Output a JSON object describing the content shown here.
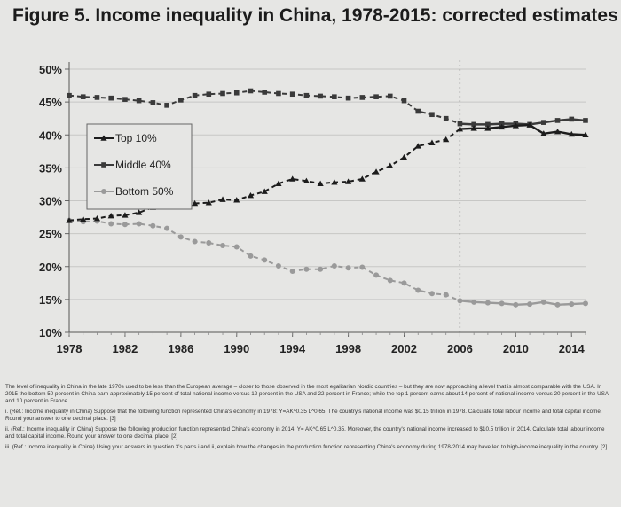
{
  "title": "Figure 5. Income inequality in China, 1978-2015: corrected estimates",
  "chart_data": {
    "type": "line",
    "x_ticks": [
      "1978",
      "1982",
      "1986",
      "1990",
      "1994",
      "1998",
      "2002",
      "2006",
      "2010",
      "2014"
    ],
    "y_ticks": [
      "50%",
      "45%",
      "40%",
      "35%",
      "30%",
      "25%",
      "20%",
      "15%",
      "10%"
    ],
    "xlim": [
      1978,
      2015
    ],
    "ylim": [
      10,
      50
    ],
    "grid": "horizontal",
    "legend_placement": "upper-left",
    "reference_line_x": 2006,
    "colors": {
      "top": "#1c1c1c",
      "middle": "#3a3a3a",
      "bottom": "#9a9a9a"
    },
    "x": [
      1978,
      1979,
      1980,
      1981,
      1982,
      1983,
      1984,
      1985,
      1986,
      1987,
      1988,
      1989,
      1990,
      1991,
      1992,
      1993,
      1994,
      1995,
      1996,
      1997,
      1998,
      1999,
      2000,
      2001,
      2002,
      2003,
      2004,
      2005,
      2006,
      2007,
      2008,
      2009,
      2010,
      2011,
      2012,
      2013,
      2014,
      2015
    ],
    "series": [
      {
        "name": "Top 10%",
        "marker": "triangle",
        "values": [
          27.0,
          27.2,
          27.3,
          27.7,
          27.8,
          28.2,
          29.0,
          29.6,
          29.5,
          29.6,
          29.7,
          30.2,
          30.1,
          30.8,
          31.4,
          32.6,
          33.3,
          33.0,
          32.6,
          32.8,
          32.9,
          33.3,
          34.4,
          35.3,
          36.6,
          38.3,
          38.8,
          39.3,
          40.9,
          41.0,
          41.0,
          41.2,
          41.4,
          41.5,
          40.2,
          40.5,
          40.1,
          40.0
        ]
      },
      {
        "name": "Middle 40%",
        "marker": "square",
        "values": [
          46.0,
          45.8,
          45.7,
          45.6,
          45.4,
          45.2,
          44.9,
          44.5,
          45.3,
          46.0,
          46.2,
          46.3,
          46.4,
          46.7,
          46.5,
          46.3,
          46.2,
          46.0,
          45.9,
          45.8,
          45.6,
          45.7,
          45.8,
          45.9,
          45.2,
          43.6,
          43.1,
          42.5,
          41.7,
          41.6,
          41.6,
          41.7,
          41.7,
          41.6,
          41.9,
          42.2,
          42.4,
          42.2
        ]
      },
      {
        "name": "Bottom 50%",
        "marker": "circle",
        "values": [
          27.0,
          26.8,
          26.9,
          26.5,
          26.4,
          26.5,
          26.2,
          25.8,
          24.5,
          23.8,
          23.6,
          23.2,
          23.0,
          21.6,
          21.0,
          20.1,
          19.3,
          19.6,
          19.6,
          20.1,
          19.8,
          19.9,
          18.7,
          17.9,
          17.5,
          16.4,
          15.9,
          15.7,
          14.8,
          14.6,
          14.5,
          14.4,
          14.2,
          14.3,
          14.6,
          14.2,
          14.3,
          14.4
        ]
      }
    ]
  },
  "notes": [
    "The level of inequality in China in the late 1970s used to be less than the European average – closer to those observed in the most egalitarian Nordic countries – but they are now approaching a level that is almost comparable with the USA. In 2015 the bottom 50 percent in China earn approximately 15 percent of total national income versus 12 percent in the USA and 22 percent in France; while the top 1 percent earns about 14 percent of national income versus 20 percent in the USA and 10 percent in France.",
    "i. (Ref.: Income inequality in China) Suppose that the following function represented China's economy in 1978: Y=AK^0.35 L^0.65. The country's national income was $0.15 trillion in 1978. Calculate total labour income and total capital income. Round your answer to one decimal place. [3]",
    "ii. (Ref.: Income inequality in China) Suppose the following production function represented China's economy in 2014: Y= AK^0.65 L^0.35. Moreover, the country's national income increased to $10.5 trillion in 2014. Calculate total labour income and total capital income. Round your answer to one decimal place. [2]",
    "iii. (Ref.: Income inequality in China) Using your answers in question 3's parts i and ii, explain how the changes in the production function representing China's economy during 1978-2014 may have led to high-income inequality in the country. [2]"
  ]
}
